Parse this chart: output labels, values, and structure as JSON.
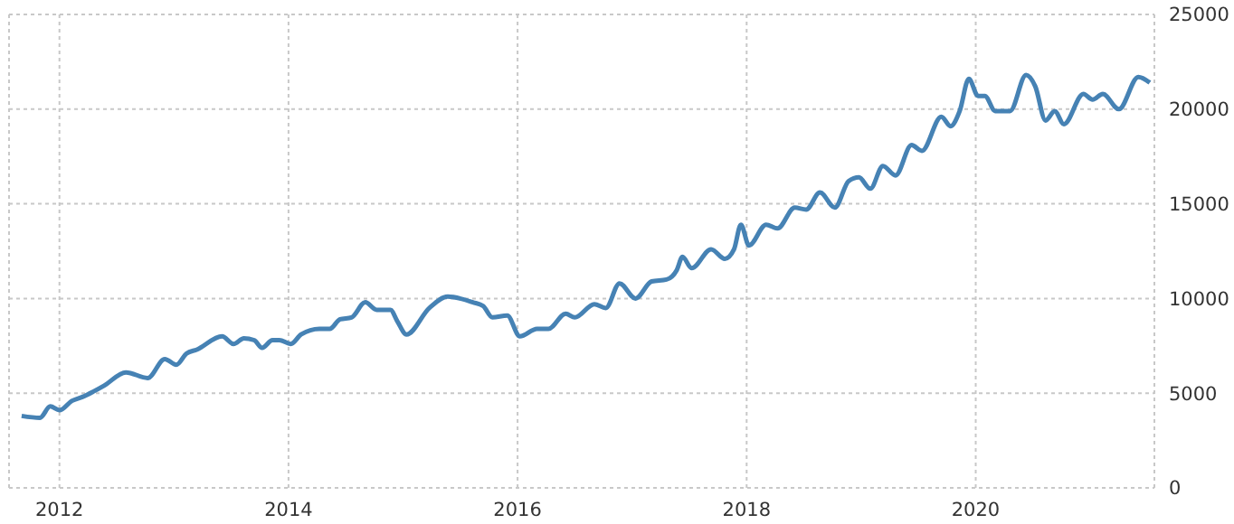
{
  "chart_data": {
    "type": "line",
    "x": [
      2011.67,
      2011.83,
      2011.92,
      2012.0,
      2012.11,
      2012.2,
      2012.3,
      2012.39,
      2012.58,
      2012.77,
      2012.92,
      2013.02,
      2013.11,
      2013.2,
      2013.42,
      2013.52,
      2013.61,
      2013.7,
      2013.77,
      2013.86,
      2013.92,
      2014.02,
      2014.11,
      2014.27,
      2014.36,
      2014.45,
      2014.55,
      2014.67,
      2014.77,
      2014.89,
      2014.95,
      2015.03,
      2015.23,
      2015.39,
      2015.61,
      2015.7,
      2015.78,
      2015.91,
      2016.02,
      2016.17,
      2016.27,
      2016.42,
      2016.5,
      2016.67,
      2016.77,
      2016.89,
      2017.03,
      2017.17,
      2017.3,
      2017.39,
      2017.44,
      2017.52,
      2017.69,
      2017.81,
      2017.89,
      2017.95,
      2018.02,
      2018.17,
      2018.27,
      2018.42,
      2018.52,
      2018.64,
      2018.77,
      2018.89,
      2018.98,
      2019.08,
      2019.19,
      2019.3,
      2019.44,
      2019.53,
      2019.7,
      2019.78,
      2019.86,
      2019.94,
      2020.02,
      2020.08,
      2020.17,
      2020.3,
      2020.44,
      2020.52,
      2020.61,
      2020.69,
      2020.77,
      2020.94,
      2021.02,
      2021.11,
      2021.25,
      2021.42,
      2021.52
    ],
    "series": [
      {
        "color": "#4682b4",
        "values": [
          3800,
          3700,
          4300,
          4100,
          4600,
          4800,
          5100,
          5400,
          6100,
          5800,
          6800,
          6500,
          7100,
          7300,
          8000,
          7600,
          7900,
          7800,
          7400,
          7800,
          7800,
          7600,
          8100,
          8400,
          8400,
          8900,
          9000,
          9800,
          9400,
          9400,
          8800,
          8100,
          9500,
          10100,
          9800,
          9600,
          9000,
          9100,
          8000,
          8400,
          8400,
          9200,
          9000,
          9700,
          9500,
          10800,
          10000,
          10900,
          11000,
          11500,
          12200,
          11600,
          12600,
          12100,
          12600,
          13900,
          12800,
          13900,
          13700,
          14800,
          14700,
          15600,
          14800,
          16200,
          16400,
          15800,
          17000,
          16500,
          18100,
          17800,
          19600,
          19100,
          19900,
          21600,
          20700,
          20700,
          19900,
          19900,
          21800,
          21200,
          19400,
          19900,
          19200,
          20800,
          20500,
          20800,
          20000,
          21700,
          21400
        ]
      }
    ],
    "xlim": [
      2011.56,
      2021.56
    ],
    "xticks": [
      2012,
      2014,
      2016,
      2018,
      2020
    ],
    "ylim": [
      0,
      25000
    ],
    "yticks": [
      0,
      5000,
      10000,
      15000,
      20000,
      25000
    ],
    "grid": true,
    "marker": "none",
    "line_style": "solid"
  }
}
